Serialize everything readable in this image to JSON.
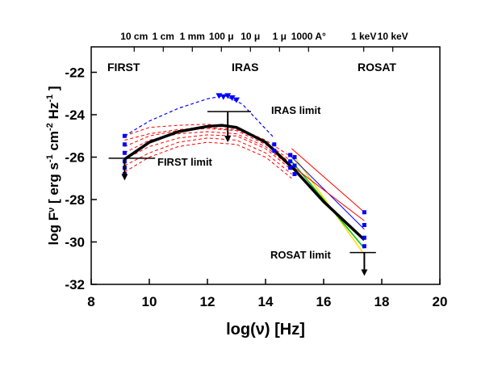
{
  "chart_data": {
    "type": "line",
    "xlabel": "log(ν)  [Hz]",
    "ylabel": [
      "log F",
      "ν",
      "  [ erg s",
      "-1",
      " cm",
      "-2",
      " Hz",
      "-1",
      " ]"
    ],
    "xlim": [
      8,
      20
    ],
    "ylim": [
      -32,
      -20.8
    ],
    "xticks": [
      8,
      10,
      12,
      14,
      16,
      18,
      20
    ],
    "yticks": [
      -32,
      -30,
      -28,
      -26,
      -24,
      -22
    ],
    "top_ticks": [
      {
        "value": 9.48,
        "label": "10 cm"
      },
      {
        "value": 10.48,
        "label": "1 cm"
      },
      {
        "value": 11.48,
        "label": "1 mm"
      },
      {
        "value": 12.48,
        "label": "100 μ"
      },
      {
        "value": 13.48,
        "label": "10 μ"
      },
      {
        "value": 14.48,
        "label": "1 μ"
      },
      {
        "value": 15.48,
        "label": "1000 A°"
      },
      {
        "value": 17.38,
        "label": "1 keV"
      },
      {
        "value": 18.38,
        "label": "10 keV"
      }
    ],
    "bands": [
      "FIRST",
      "IRAS",
      "ROSAT"
    ],
    "series": [
      {
        "color": "#ff0000",
        "dash": true,
        "width": 1,
        "x": [
          9.15,
          10,
          11,
          12,
          13,
          14,
          14.9
        ],
        "values": [
          -25.2,
          -24.9,
          -24.7,
          -24.6,
          -24.7,
          -25.3,
          -26.2
        ]
      },
      {
        "color": "#ff0000",
        "dash": true,
        "width": 1,
        "x": [
          9.15,
          10,
          11,
          12,
          13,
          14,
          14.9
        ],
        "values": [
          -25.5,
          -25.0,
          -24.75,
          -24.65,
          -24.75,
          -25.4,
          -26.3
        ]
      },
      {
        "color": "#ff0000",
        "dash": true,
        "width": 1,
        "x": [
          9.15,
          10,
          11,
          12,
          13,
          14,
          14.9
        ],
        "values": [
          -25.8,
          -25.2,
          -24.9,
          -24.8,
          -24.9,
          -25.5,
          -26.5
        ]
      },
      {
        "color": "#ff0000",
        "dash": true,
        "width": 1,
        "x": [
          9.15,
          10,
          11,
          12,
          13,
          14,
          14.9
        ],
        "values": [
          -26.1,
          -25.5,
          -25.1,
          -24.95,
          -25.0,
          -25.6,
          -26.6
        ]
      },
      {
        "color": "#ff0000",
        "dash": true,
        "width": 1,
        "x": [
          9.15,
          10,
          11,
          12,
          13,
          14,
          14.9
        ],
        "values": [
          -26.4,
          -25.8,
          -25.3,
          -25.1,
          -25.2,
          -25.8,
          -26.8
        ]
      },
      {
        "color": "#ff0000",
        "dash": true,
        "width": 1,
        "x": [
          9.15,
          10,
          11,
          12,
          13,
          14,
          14.9
        ],
        "values": [
          -26.7,
          -26.0,
          -25.5,
          -25.3,
          -25.4,
          -26.0,
          -27.0
        ]
      },
      {
        "color": "#ff0000",
        "dash": true,
        "width": 1,
        "x": [
          9.15,
          10,
          11,
          12,
          13,
          14,
          14.9
        ],
        "values": [
          -25.0,
          -24.6,
          -24.5,
          -24.45,
          -24.6,
          -25.2,
          -26.0
        ]
      },
      {
        "color": "#0000ff",
        "dash": true,
        "width": 1.2,
        "x": [
          9.15,
          10,
          11,
          12,
          12.6,
          13.2,
          14.3
        ],
        "values": [
          -25.0,
          -24.3,
          -23.7,
          -23.25,
          -23.1,
          -23.5,
          -25.1
        ]
      },
      {
        "color": "#ff0000",
        "dash": false,
        "width": 1,
        "x": [
          14.9,
          17.4
        ],
        "values": [
          -25.6,
          -28.6
        ]
      },
      {
        "color": "#ffdd00",
        "dash": false,
        "width": 1.5,
        "x": [
          14.9,
          17.4
        ],
        "values": [
          -25.8,
          -30.6
        ]
      },
      {
        "color": "#00c000",
        "dash": false,
        "width": 1.5,
        "x": [
          14.9,
          17.4
        ],
        "values": [
          -26.2,
          -30.3
        ]
      },
      {
        "color": "#0000ff",
        "dash": false,
        "width": 1,
        "x": [
          14.9,
          17.4
        ],
        "values": [
          -26.0,
          -29.4
        ]
      },
      {
        "color": "#ff0000",
        "dash": false,
        "width": 1,
        "x": [
          14.9,
          17.4
        ],
        "values": [
          -26.4,
          -29.0
        ]
      },
      {
        "color": "#000000",
        "dash": false,
        "width": 3.5,
        "x": [
          9.15,
          10,
          11,
          12,
          12.5,
          13,
          14,
          15,
          16,
          17.4
        ],
        "values": [
          -26.1,
          -25.3,
          -24.8,
          -24.55,
          -24.5,
          -24.6,
          -25.3,
          -26.6,
          -28.1,
          -29.9
        ]
      }
    ],
    "points": [
      {
        "marker": "square",
        "color": "#0000ff",
        "x": [
          9.15,
          9.15,
          9.15,
          9.15,
          9.15,
          9.15,
          14.3,
          14.3,
          14.85,
          14.85,
          14.85,
          15.0,
          15.0,
          15.0,
          17.4,
          17.4,
          17.4,
          17.4
        ],
        "values": [
          -25.0,
          -25.4,
          -25.8,
          -26.2,
          -26.5,
          -26.8,
          -25.4,
          -25.7,
          -25.9,
          -26.2,
          -26.5,
          -26.0,
          -26.4,
          -26.8,
          -28.6,
          -29.2,
          -29.8,
          -30.2
        ]
      },
      {
        "marker": "triangle",
        "color": "#0000ff",
        "x": [
          12.4,
          12.55,
          12.7,
          12.85,
          13.0
        ],
        "values": [
          -23.1,
          -23.15,
          -23.1,
          -23.2,
          -23.3
        ]
      }
    ],
    "limits": [
      {
        "label": "FIRST limit",
        "x": [
          8.6,
          10.2
        ],
        "y": -26.05,
        "arrow_x": 9.15,
        "arrow_to": -27.1
      },
      {
        "label": "IRAS limit",
        "x": [
          12.0,
          13.5
        ],
        "y": -23.85,
        "arrow_x": 12.7,
        "arrow_to": -25.3
      },
      {
        "label": "ROSAT limit",
        "x": [
          16.9,
          17.8
        ],
        "y": -30.5,
        "arrow_x": 17.4,
        "arrow_to": -31.6
      }
    ]
  }
}
